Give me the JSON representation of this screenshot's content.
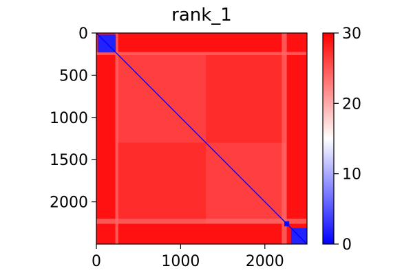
{
  "chart_data": {
    "type": "heatmap",
    "title": "rank_1",
    "xlabel": "",
    "ylabel": "",
    "matrix_size": 2500,
    "xlim": [
      0,
      2500
    ],
    "ylim": [
      2500,
      0
    ],
    "x_ticks": [
      0,
      1000,
      2000
    ],
    "y_ticks": [
      0,
      500,
      1000,
      1500,
      2000
    ],
    "colorbar": {
      "min": 0,
      "max": 30,
      "ticks": [
        0,
        10,
        20,
        30
      ],
      "colors": {
        "low": "#0000ff",
        "mid": "#ffffff",
        "high": "#ff0000"
      }
    },
    "background_value": 29,
    "diagonal_value": 0,
    "blocks": [
      {
        "x_range": [
          20,
          230
        ],
        "y_range": [
          20,
          230
        ],
        "value": 2
      },
      {
        "x_range": [
          2230,
          2290
        ],
        "y_range": [
          2230,
          2290
        ],
        "value": 1
      },
      {
        "x_range": [
          2310,
          2500
        ],
        "y_range": [
          2310,
          2500
        ],
        "value": 2
      }
    ],
    "bands": [
      {
        "orientation": "horizontal",
        "range": [
          225,
          260
        ],
        "value": 24
      },
      {
        "orientation": "vertical",
        "range": [
          225,
          260
        ],
        "value": 24
      },
      {
        "orientation": "horizontal",
        "range": [
          2200,
          2260
        ],
        "value": 24
      },
      {
        "orientation": "vertical",
        "range": [
          2200,
          2260
        ],
        "value": 24
      }
    ],
    "texture_regions": [
      {
        "x_range": [
          250,
          1300
        ],
        "y_range": [
          250,
          1300
        ],
        "value": 24
      },
      {
        "x_range": [
          1300,
          2250
        ],
        "y_range": [
          1300,
          2250
        ],
        "value": 24
      },
      {
        "x_range": [
          250,
          1300
        ],
        "y_range": [
          1300,
          2200
        ],
        "value": 26
      },
      {
        "x_range": [
          1300,
          2200
        ],
        "y_range": [
          250,
          1300
        ],
        "value": 26
      }
    ]
  }
}
